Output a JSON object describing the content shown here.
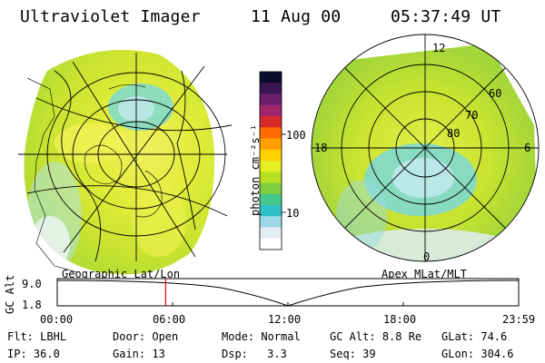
{
  "header": {
    "title": "Ultraviolet Imager",
    "date": "11 Aug 00",
    "time": "05:37:49 UT"
  },
  "geographic_panel": {
    "caption": "Geographic Lat/Lon"
  },
  "colorbar": {
    "unit_label": "photon cm⁻²s⁻¹",
    "tick_labels": [
      "100",
      "10"
    ],
    "colors": [
      "#0b0b2e",
      "#3b1454",
      "#6a1f6e",
      "#a0256a",
      "#d62a2a",
      "#ff6a00",
      "#ffa000",
      "#ffd000",
      "#e6ee20",
      "#b8e020",
      "#7fd040",
      "#46c88c",
      "#30c0c8",
      "#9ed8e8",
      "#e0eef4",
      "#ffffff"
    ]
  },
  "apex_panel": {
    "caption": "Apex MLat/MLT",
    "mlt_labels": [
      "12",
      "18",
      "6",
      "0"
    ],
    "mlat_labels": [
      "60",
      "70",
      "80"
    ]
  },
  "gc_alt_plot": {
    "ylabel": "GC Alt",
    "y_ticks": [
      "9.0",
      "1.8"
    ],
    "x_ticks": [
      "00:00",
      "06:00",
      "12:00",
      "18:00",
      "23:59"
    ],
    "marker_time": "05:37:49",
    "marker_color": "#e00000"
  },
  "info": {
    "row1": [
      {
        "label": "Flt:",
        "value": "LBHL"
      },
      {
        "label": "Door:",
        "value": "Open"
      },
      {
        "label": "Mode:",
        "value": "Normal"
      },
      {
        "label": "GC Alt:",
        "value": "8.8 Re"
      },
      {
        "label": "GLat:",
        "value": "74.6"
      }
    ],
    "row2": [
      {
        "label": "IP:",
        "value": "36.0"
      },
      {
        "label": "Gain:",
        "value": "13"
      },
      {
        "label": "Dsp:",
        "value": "3.3"
      },
      {
        "label": "Seq:",
        "value": "39"
      },
      {
        "label": "GLon:",
        "value": "304.6"
      }
    ]
  }
}
